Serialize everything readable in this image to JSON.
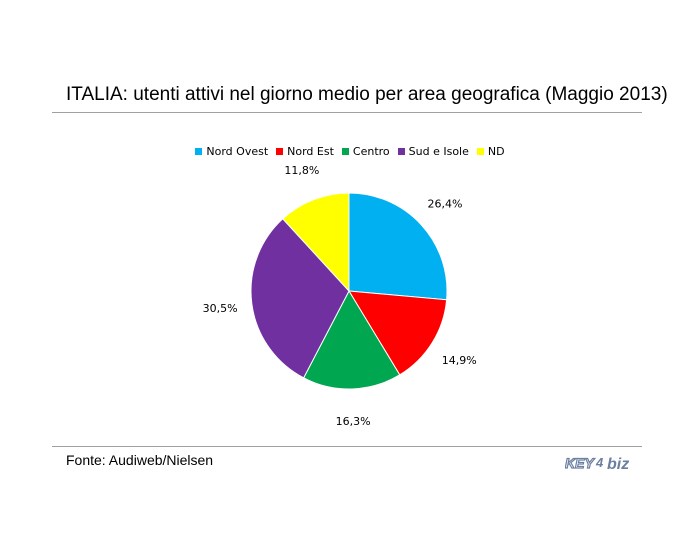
{
  "chart_data": {
    "type": "pie",
    "title": "ITALIA: utenti attivi nel giorno medio per area geografica (Maggio 2013)",
    "legend_position": "top",
    "slices": [
      {
        "name": "Nord Ovest",
        "value": 26.4,
        "label": "26,4%",
        "color": "#00b0f0"
      },
      {
        "name": "Nord Est",
        "value": 14.9,
        "label": "14,9%",
        "color": "#ff0000"
      },
      {
        "name": "Centro",
        "value": 16.3,
        "label": "16,3%",
        "color": "#00a650"
      },
      {
        "name": "Sud e Isole",
        "value": 30.5,
        "label": "30,5%",
        "color": "#7030a0"
      },
      {
        "name": "ND",
        "value": 11.8,
        "label": "11,8%",
        "color": "#ffff00"
      }
    ]
  },
  "source": "Fonte: Audiweb/Nielsen",
  "logo": {
    "text_left": "KEY",
    "text_right": "biz",
    "digit": "4"
  }
}
